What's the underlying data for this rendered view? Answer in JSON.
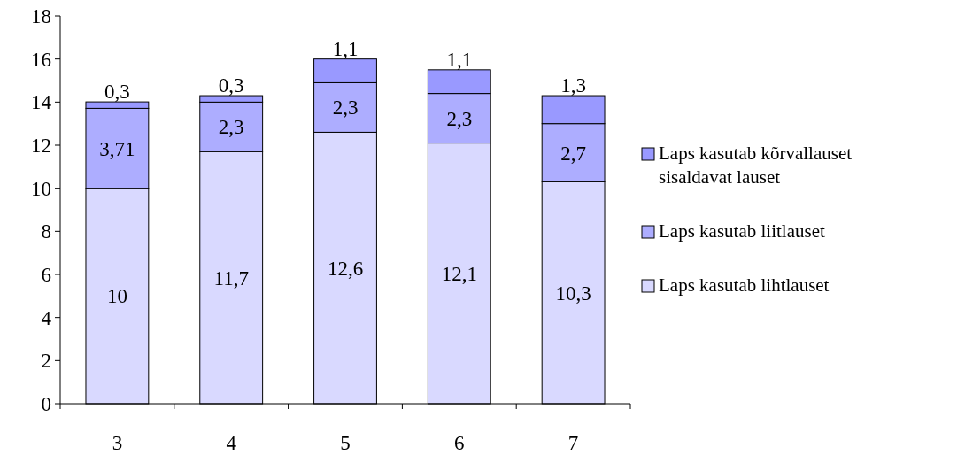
{
  "chart_data": {
    "type": "bar",
    "stacked": true,
    "categories": [
      "3",
      "4",
      "5",
      "6",
      "7"
    ],
    "series": [
      {
        "name": "Laps kasutab lihtlauset",
        "color": "#d9d9ff",
        "values": [
          10,
          11.7,
          12.6,
          12.1,
          10.3
        ],
        "value_labels": [
          "10",
          "11,7",
          "12,6",
          "12,1",
          "10,3"
        ]
      },
      {
        "name": "Laps kasutab liitlauset",
        "color": "#adadff",
        "values": [
          3.71,
          2.3,
          2.3,
          2.3,
          2.7
        ],
        "value_labels": [
          "3,71",
          "2,3",
          "2,3",
          "2,3",
          "2,7"
        ]
      },
      {
        "name": "Laps kasutab kõrvallauset sisaldavat lauset",
        "color": "#9999ff",
        "values": [
          0.3,
          0.3,
          1.1,
          1.1,
          1.3
        ],
        "value_labels": [
          "0,3",
          "0,3",
          "1,1",
          "1,1",
          "1,3"
        ]
      }
    ],
    "ylim": [
      0,
      18
    ],
    "yticks": [
      0,
      2,
      4,
      6,
      8,
      10,
      12,
      14,
      16,
      18
    ],
    "grid": false,
    "legend": "right"
  }
}
